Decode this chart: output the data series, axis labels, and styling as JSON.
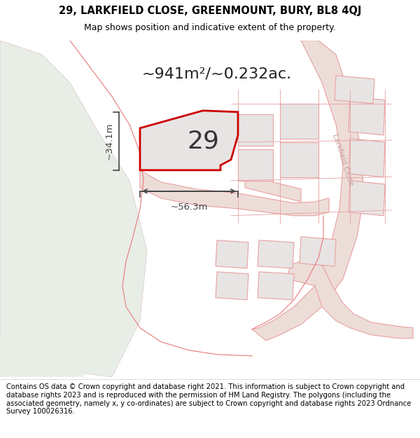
{
  "title_line1": "29, LARKFIELD CLOSE, GREENMOUNT, BURY, BL8 4QJ",
  "title_line2": "Map shows position and indicative extent of the property.",
  "area_text": "~941m²/~0.232ac.",
  "label_29": "29",
  "dim_height": "~34.1m",
  "dim_width": "~56.3m",
  "street_label": "Larkfield Close",
  "footer_text": "Contains OS data © Crown copyright and database right 2021. This information is subject to Crown copyright and database rights 2023 and is reproduced with the permission of HM Land Registry. The polygons (including the associated geometry, namely x, y co-ordinates) are subject to Crown copyright and database rights 2023 Ordnance Survey 100026316.",
  "map_bg": "#f7f4f2",
  "terrain_fill": "#e8ede6",
  "terrain_edge": "#d8c8c8",
  "plot_fill": "#e8e4e4",
  "plot_edge": "#cc0000",
  "road_fill": "#edddd8",
  "road_edge": "#e8a0a0",
  "other_plot_fill": "#e8e4e4",
  "other_plot_edge": "#e8a0a0",
  "dim_color": "#444444",
  "street_color": "#c8a0a0",
  "title_fontsize": 10.5,
  "subtitle_fontsize": 9,
  "footer_fontsize": 7.2,
  "area_fontsize": 16,
  "label_fontsize": 26,
  "dim_fontsize": 9.5
}
